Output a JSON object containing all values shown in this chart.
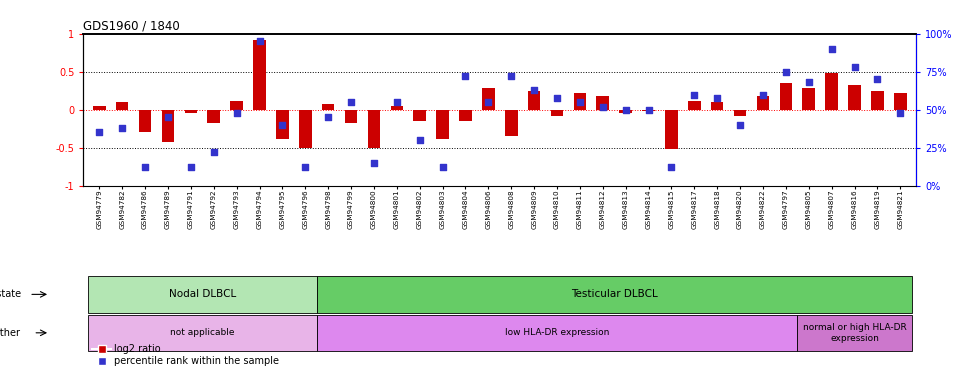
{
  "title": "GDS1960 / 1840",
  "samples": [
    "GSM94779",
    "GSM94782",
    "GSM94786",
    "GSM94789",
    "GSM94791",
    "GSM94792",
    "GSM94793",
    "GSM94794",
    "GSM94795",
    "GSM94796",
    "GSM94798",
    "GSM94799",
    "GSM94800",
    "GSM94801",
    "GSM94802",
    "GSM94803",
    "GSM94804",
    "GSM94806",
    "GSM94808",
    "GSM94809",
    "GSM94810",
    "GSM94811",
    "GSM94812",
    "GSM94813",
    "GSM94814",
    "GSM94815",
    "GSM94817",
    "GSM94818",
    "GSM94820",
    "GSM94822",
    "GSM94797",
    "GSM94805",
    "GSM94807",
    "GSM94816",
    "GSM94819",
    "GSM94821"
  ],
  "log2_ratio": [
    0.05,
    0.1,
    -0.3,
    -0.42,
    -0.05,
    -0.18,
    0.12,
    0.92,
    -0.38,
    -0.5,
    0.07,
    -0.18,
    -0.5,
    0.05,
    -0.15,
    -0.38,
    -0.15,
    0.28,
    -0.35,
    0.25,
    -0.08,
    0.22,
    0.18,
    -0.05,
    -0.02,
    -0.52,
    0.12,
    0.1,
    -0.08,
    0.18,
    0.35,
    0.28,
    0.48,
    0.32,
    0.25,
    0.22
  ],
  "percentile": [
    35,
    38,
    12,
    45,
    12,
    22,
    48,
    95,
    40,
    12,
    45,
    55,
    15,
    55,
    30,
    12,
    72,
    55,
    72,
    63,
    58,
    55,
    52,
    50,
    50,
    12,
    60,
    58,
    40,
    60,
    75,
    68,
    90,
    78,
    70,
    48
  ],
  "bar_color": "#cc0000",
  "dot_color": "#3333cc",
  "ylim_left": [
    -1.0,
    1.0
  ],
  "yticks_left": [
    -1,
    -0.5,
    0,
    0.5,
    1
  ],
  "yticks_right": [
    0,
    25,
    50,
    75,
    100
  ],
  "yticklabels_right": [
    "0%",
    "25%",
    "50%",
    "75%",
    "100%"
  ],
  "disease_state_groups": [
    {
      "label": "Nodal DLBCL",
      "start": 0,
      "end": 10,
      "color": "#b3e6b3"
    },
    {
      "label": "Testicular DLBCL",
      "start": 10,
      "end": 36,
      "color": "#66cc66"
    }
  ],
  "other_groups": [
    {
      "label": "not applicable",
      "start": 0,
      "end": 10,
      "color": "#e8b4e8"
    },
    {
      "label": "low HLA-DR expression",
      "start": 10,
      "end": 31,
      "color": "#dd88ee"
    },
    {
      "label": "normal or high HLA-DR\nexpression",
      "start": 31,
      "end": 36,
      "color": "#cc77cc"
    }
  ],
  "legend_labels": [
    "log2 ratio",
    "percentile rank within the sample"
  ],
  "legend_colors": [
    "#cc0000",
    "#3333cc"
  ]
}
